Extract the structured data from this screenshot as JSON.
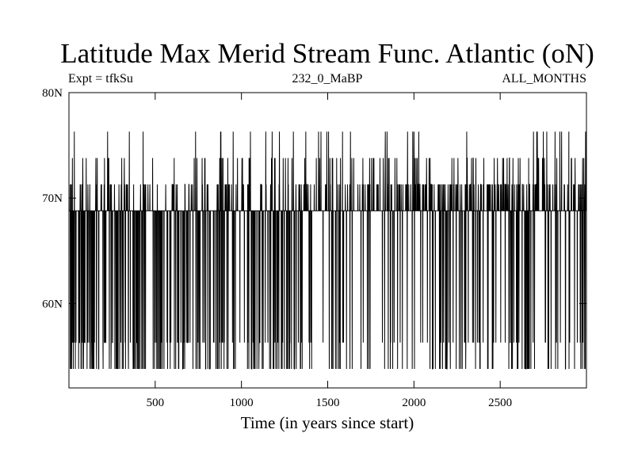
{
  "chart_data": {
    "type": "line",
    "title": "Latitude Max Merid Stream Func. Atlantic (oN)",
    "subtitle_left": "Expt = tfkSu",
    "subtitle_center": "232_0_MaBP",
    "subtitle_right": "ALL_MONTHS",
    "xlabel": "Time (in years since start)",
    "ylabel": "",
    "xlim": [
      0,
      3000
    ],
    "ylim": [
      52,
      80
    ],
    "xticks": [
      500,
      1000,
      1500,
      2000,
      2500
    ],
    "xtick_labels": [
      "500",
      "1000",
      "1500",
      "2000",
      "2500"
    ],
    "yticks": [
      60,
      70,
      80
    ],
    "ytick_labels": [
      "60N",
      "70N",
      "80N"
    ],
    "grid": false,
    "legend": "none",
    "line_color": "#000000",
    "levels": [
      53.8,
      56.3,
      68.8,
      71.3,
      73.8,
      76.3
    ],
    "series": [
      {
        "sampling": "annual, one value per year from year 1 to year 3000",
        "dominant_level": 68.8,
        "min": 53.8,
        "max": 76.3
      }
    ]
  }
}
